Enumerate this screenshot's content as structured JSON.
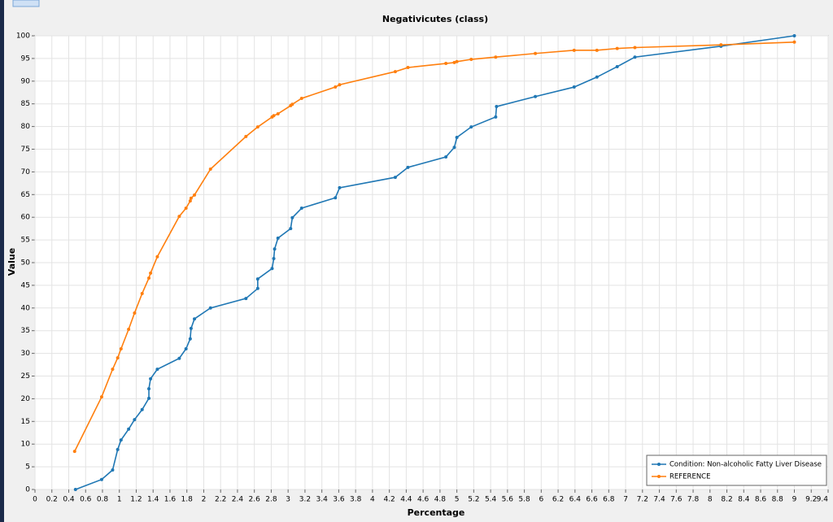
{
  "chart_data": {
    "type": "line",
    "title": "Negativicutes (class)",
    "x_label": "Percentage",
    "y_label": "Value",
    "xlim": [
      0,
      9.4
    ],
    "ylim": [
      0,
      100
    ],
    "xticks": [
      0,
      0.2,
      0.4,
      0.6,
      0.8,
      1,
      1.2,
      1.4,
      1.6,
      1.8,
      2,
      2.2,
      2.4,
      2.6,
      2.8,
      3,
      3.2,
      3.4,
      3.6,
      3.8,
      4,
      4.2,
      4.4,
      4.6,
      4.8,
      5,
      5.2,
      5.4,
      5.6,
      5.8,
      6,
      6.2,
      6.4,
      6.6,
      6.8,
      7,
      7.2,
      7.4,
      7.6,
      7.8,
      8,
      8.2,
      8.4,
      8.6,
      8.8,
      9,
      9.2,
      9.4
    ],
    "yticks": [
      0,
      5,
      10,
      15,
      20,
      25,
      30,
      35,
      40,
      45,
      50,
      55,
      60,
      65,
      70,
      75,
      80,
      85,
      90,
      95,
      100
    ],
    "grid": true,
    "legend": "bottom-right",
    "series": [
      {
        "name": "Condition: Non-alcoholic Fatty Liver Disease",
        "color": "#1f77b4",
        "x": [
          0.48,
          0.79,
          0.92,
          0.98,
          1.02,
          1.11,
          1.18,
          1.27,
          1.35,
          1.35,
          1.37,
          1.45,
          1.71,
          1.79,
          1.84,
          1.85,
          1.89,
          2.08,
          2.5,
          2.64,
          2.64,
          2.81,
          2.83,
          2.84,
          2.88,
          3.03,
          3.05,
          3.16,
          3.56,
          3.61,
          4.27,
          4.42,
          4.87,
          4.97,
          5.0,
          5.17,
          5.46,
          5.47,
          5.93,
          6.39,
          6.66,
          6.9,
          7.11,
          8.13,
          9.0
        ],
        "values": [
          0,
          2.2,
          4.3,
          8.8,
          10.9,
          13.3,
          15.4,
          17.6,
          20.1,
          22.2,
          24.4,
          26.5,
          28.9,
          31.0,
          33.2,
          35.5,
          37.6,
          40.0,
          42.1,
          44.3,
          46.4,
          48.7,
          50.9,
          53.0,
          55.4,
          57.5,
          59.9,
          62.0,
          64.3,
          66.5,
          68.8,
          71.0,
          73.3,
          75.4,
          77.6,
          79.9,
          82.1,
          84.4,
          86.6,
          88.7,
          90.9,
          93.2,
          95.3,
          97.7,
          100
        ]
      },
      {
        "name": "REFERENCE",
        "color": "#ff7f0e",
        "x": [
          0.47,
          0.79,
          0.92,
          0.98,
          1.02,
          1.11,
          1.18,
          1.27,
          1.35,
          1.37,
          1.45,
          1.71,
          1.79,
          1.84,
          1.85,
          1.89,
          2.08,
          2.5,
          2.64,
          2.81,
          2.83,
          2.88,
          3.03,
          3.05,
          3.16,
          3.56,
          3.61,
          4.27,
          4.42,
          4.87,
          4.97,
          5.0,
          5.17,
          5.46,
          5.93,
          6.39,
          6.66,
          6.9,
          7.11,
          8.13,
          9.0
        ],
        "values": [
          8.4,
          20.4,
          26.5,
          29.0,
          31.0,
          35.3,
          38.9,
          43.2,
          46.6,
          47.7,
          51.3,
          60.2,
          62.0,
          63.6,
          64.2,
          64.9,
          70.6,
          77.8,
          79.9,
          82.1,
          82.4,
          82.8,
          84.6,
          84.9,
          86.2,
          88.7,
          89.2,
          92.1,
          93.0,
          93.9,
          94.1,
          94.3,
          94.8,
          95.3,
          96.1,
          96.8,
          96.8,
          97.2,
          97.4,
          98.0,
          98.6
        ]
      }
    ]
  }
}
